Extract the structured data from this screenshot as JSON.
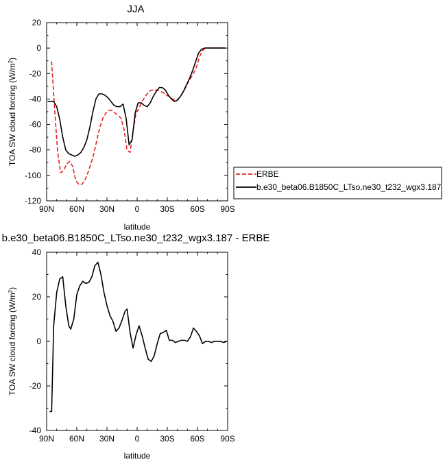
{
  "chart_data": [
    {
      "type": "line",
      "title": "JJA",
      "xlabel": "latitude",
      "ylabel": "TOA SW cloud forcing (W/m",
      "ylabel_sup": "2",
      "ylabel_close": ")",
      "xlim": [
        90,
        -90
      ],
      "ylim": [
        -120,
        20
      ],
      "xticks": [
        90,
        60,
        30,
        0,
        -30,
        -60,
        -90
      ],
      "xtick_labels": [
        "90N",
        "60N",
        "30N",
        "0",
        "30S",
        "60S",
        "90S"
      ],
      "yticks": [
        20,
        0,
        -20,
        -40,
        -60,
        -80,
        -100,
        -120
      ],
      "ytick_labels": [
        "20",
        "0",
        "-20",
        "-40",
        "-60",
        "-80",
        "-100",
        "-120"
      ],
      "legend_position": "right",
      "series": [
        {
          "name": "ERBE",
          "color": "#e8231e",
          "style": "dashed",
          "x": [
            86,
            85,
            82,
            79,
            76,
            73,
            70,
            67,
            64,
            61,
            58,
            55,
            52,
            49,
            46,
            43,
            40,
            37,
            34,
            31,
            28,
            25,
            22,
            19,
            16,
            13,
            10,
            7,
            4,
            1,
            -2,
            -5,
            -8,
            -11,
            -14,
            -17,
            -20,
            -23,
            -26,
            -29,
            -32,
            -35,
            -38,
            -41,
            -44,
            -47,
            -50,
            -53,
            -56,
            -59,
            -62,
            -65,
            -68,
            -71,
            -74,
            -77,
            -80,
            -83,
            -86
          ],
          "y": [
            -11,
            -11,
            -48,
            -82,
            -98,
            -96,
            -91,
            -89,
            -93,
            -104,
            -107,
            -107,
            -104,
            -98,
            -91,
            -83,
            -72,
            -62,
            -55,
            -51,
            -49,
            -49,
            -51,
            -53,
            -55,
            -64,
            -80,
            -82,
            -65,
            -51,
            -47,
            -42,
            -38,
            -35,
            -33,
            -33,
            -33,
            -34,
            -35,
            -37,
            -38,
            -40,
            -41,
            -40,
            -37,
            -33,
            -28,
            -24,
            -20,
            -15,
            -7,
            -2,
            0,
            0,
            0,
            0,
            0,
            0,
            0
          ]
        },
        {
          "name": "b.e30_beta06.B1850C_LTso.ne30_t232_wgx3.187",
          "color": "#000000",
          "style": "solid",
          "x": [
            89,
            86,
            83,
            80,
            77,
            74,
            71,
            68,
            65,
            62,
            59,
            56,
            53,
            50,
            47,
            44,
            41,
            38,
            35,
            32,
            29,
            26,
            23,
            20,
            17,
            14,
            11,
            8,
            5,
            2,
            -1,
            -4,
            -7,
            -10,
            -13,
            -16,
            -19,
            -22,
            -25,
            -28,
            -31,
            -34,
            -37,
            -40,
            -43,
            -46,
            -49,
            -52,
            -55,
            -58,
            -61,
            -64,
            -67,
            -70,
            -73,
            -76,
            -79,
            -82,
            -85,
            -88
          ],
          "y": [
            -42,
            -42,
            -42,
            -46,
            -56,
            -70,
            -80,
            -83,
            -84,
            -85,
            -84,
            -82,
            -78,
            -72,
            -62,
            -50,
            -40,
            -36,
            -36,
            -37,
            -39,
            -42,
            -45,
            -46,
            -46,
            -44,
            -55,
            -76,
            -72,
            -51,
            -43,
            -43,
            -45,
            -46,
            -43,
            -38,
            -34,
            -31,
            -31,
            -33,
            -37,
            -40,
            -42,
            -41,
            -38,
            -34,
            -29,
            -24,
            -18,
            -11,
            -4,
            -1,
            0,
            0,
            0,
            0,
            0,
            0,
            0,
            0
          ]
        }
      ]
    },
    {
      "type": "line",
      "title": "b.e30_beta06.B1850C_LTso.ne30_t232_wgx3.187 - ERBE",
      "xlabel": "latitude",
      "ylabel": "TOA SW cloud forcing (W/m",
      "ylabel_sup": "2",
      "ylabel_close": ")",
      "xlim": [
        90,
        -90
      ],
      "ylim": [
        -40,
        40
      ],
      "xticks": [
        90,
        60,
        30,
        0,
        -30,
        -60,
        -90
      ],
      "xtick_labels": [
        "90N",
        "60N",
        "30N",
        "0",
        "30S",
        "60S",
        "90S"
      ],
      "yticks": [
        40,
        20,
        0,
        -20,
        -40
      ],
      "ytick_labels": [
        "40",
        "20",
        "0",
        "-20",
        "-40"
      ],
      "series": [
        {
          "color": "#000000",
          "style": "solid",
          "x": [
            87,
            85,
            83,
            80,
            77,
            74,
            71,
            68,
            66,
            63,
            60,
            57,
            54,
            51,
            48,
            45,
            42,
            39,
            36,
            33,
            30,
            27,
            24,
            21,
            18,
            15,
            12,
            10,
            7,
            4,
            1,
            -2,
            -5,
            -8,
            -11,
            -14,
            -17,
            -20,
            -23,
            -26,
            -29,
            -32,
            -35,
            -38,
            -41,
            -44,
            -47,
            -50,
            -53,
            -56,
            -59,
            -62,
            -65,
            -68,
            -71,
            -74,
            -77,
            -80,
            -83,
            -86,
            -89
          ],
          "y": [
            -31.5,
            -31.5,
            7,
            22,
            28,
            29,
            16,
            7,
            5.5,
            10,
            21,
            25,
            27,
            26,
            26.5,
            29,
            34,
            35.5,
            30,
            22,
            16,
            11.5,
            9,
            4.5,
            6,
            9.5,
            13.5,
            14.5,
            4,
            -3,
            3,
            7,
            2.5,
            -3,
            -8,
            -9,
            -6.5,
            -1,
            3.5,
            4,
            5,
            0.5,
            0.5,
            -0.5,
            0,
            0.5,
            0.5,
            0,
            2,
            6,
            4.5,
            2.5,
            -1,
            0,
            0,
            -0.5,
            0,
            0,
            0,
            -0.5,
            0
          ]
        }
      ]
    }
  ]
}
